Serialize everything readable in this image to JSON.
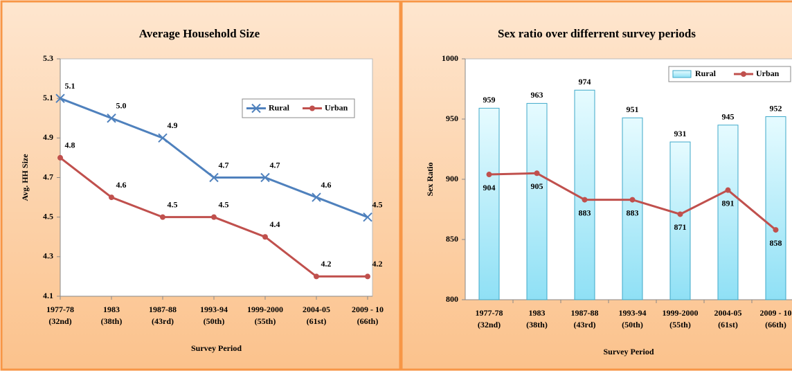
{
  "chart_data": [
    {
      "type": "line",
      "title": "Average Household Size",
      "y_label": "Avg. HH Size",
      "x_label": "Survey Period",
      "categories": [
        [
          "1977-78",
          "(32nd)"
        ],
        [
          "1983",
          "(38th)"
        ],
        [
          "1987-88",
          "(43rd)"
        ],
        [
          "1993-94",
          "(50th)"
        ],
        [
          "1999-2000",
          "(55th)"
        ],
        [
          "2004-05",
          "(61st)"
        ],
        [
          "2009 - 10",
          "(66th)"
        ]
      ],
      "series": [
        {
          "name": "Rural",
          "color": "#4f81bd",
          "marker": "x",
          "values": [
            5.1,
            5.0,
            4.9,
            4.7,
            4.7,
            4.6,
            4.5
          ],
          "value_labels": [
            "5.1",
            "5.0",
            "4.9",
            "4.7",
            "4.7",
            "4.6",
            "4.5"
          ]
        },
        {
          "name": "Urban",
          "color": "#c0504d",
          "marker": "none",
          "values": [
            4.8,
            4.6,
            4.5,
            4.5,
            4.4,
            4.2,
            4.2
          ]
        }
      ],
      "ylim": [
        4.1,
        5.3
      ],
      "yticks": [
        4.1,
        4.3,
        4.5,
        4.7,
        4.9,
        5.1,
        5.3
      ],
      "grid": false,
      "legend": "upper right"
    },
    {
      "type": "bar",
      "title": "Sex ratio over differrent survey periods",
      "y_label": "Sex Ratio",
      "x_label": "Survey Period",
      "categories": [
        [
          "1977-78",
          "(32nd)"
        ],
        [
          "1983",
          "(38th)"
        ],
        [
          "1987-88",
          "(43rd)"
        ],
        [
          "1993-94",
          "(50th)"
        ],
        [
          "1999-2000",
          "(55th)"
        ],
        [
          "2004-05",
          "(61st)"
        ],
        [
          "2009 - 10",
          "(66th)"
        ]
      ],
      "series": [
        {
          "name": "Rural",
          "type": "bar",
          "color": "#bdeffb",
          "values": [
            959,
            963,
            974,
            951,
            931,
            945,
            952
          ]
        },
        {
          "name": "Urban",
          "type": "line",
          "color": "#c0504d",
          "values": [
            904,
            905,
            883,
            883,
            871,
            891,
            858
          ]
        }
      ],
      "ylim": [
        800,
        1000
      ],
      "yticks": [
        800,
        850,
        900,
        950,
        1000
      ],
      "grid": false,
      "legend": "upper right"
    }
  ]
}
